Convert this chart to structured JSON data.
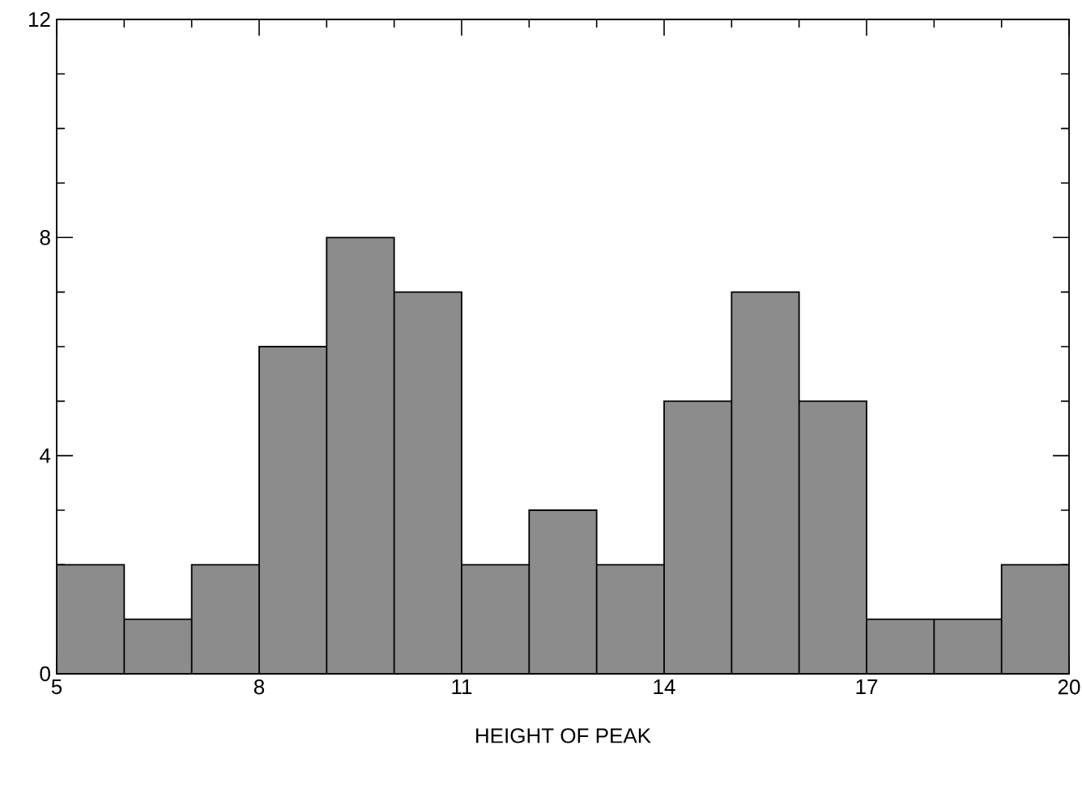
{
  "chart_data": {
    "type": "histogram",
    "xlabel": "HEIGHT OF PEAK",
    "bins": [
      5,
      6,
      7,
      8,
      9,
      10,
      11,
      12,
      13,
      14,
      15,
      16,
      17,
      18,
      19,
      20
    ],
    "values": [
      2,
      1,
      2,
      6,
      8,
      7,
      2,
      3,
      2,
      5,
      7,
      5,
      1,
      1,
      2
    ],
    "color": "#8c8c8c",
    "xlim": [
      5,
      20
    ],
    "ylim": [
      0,
      12
    ],
    "xticks": [
      5,
      8,
      11,
      14,
      17,
      20
    ],
    "yticks": [
      0,
      4,
      8,
      12
    ]
  }
}
